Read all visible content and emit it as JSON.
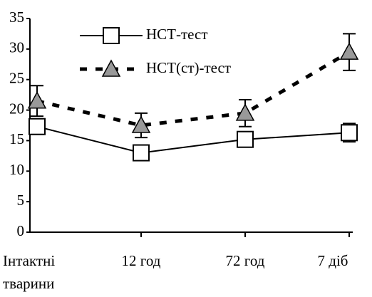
{
  "chart_data": {
    "type": "line",
    "categories": [
      "Інтактні тварини",
      "12 год",
      "72 год",
      "7 діб"
    ],
    "series": [
      {
        "name": "НСТ-тест",
        "color": "#000000",
        "style": "solid",
        "marker": "square",
        "values": [
          17.3,
          13,
          15.2,
          16.3
        ],
        "errors": [
          1,
          0.8,
          1.2,
          1.5
        ]
      },
      {
        "name": "НСТ(ст)-тест",
        "color": "#000000",
        "style": "dashed",
        "marker": "triangle",
        "values": [
          21.5,
          17.5,
          19.5,
          29.5
        ],
        "errors": [
          2.5,
          2,
          2.2,
          3
        ]
      }
    ],
    "ylim": [
      0,
      35
    ],
    "yticks": [
      0,
      5,
      10,
      15,
      20,
      25,
      30,
      35
    ],
    "grid": false,
    "legend": "upper left"
  }
}
